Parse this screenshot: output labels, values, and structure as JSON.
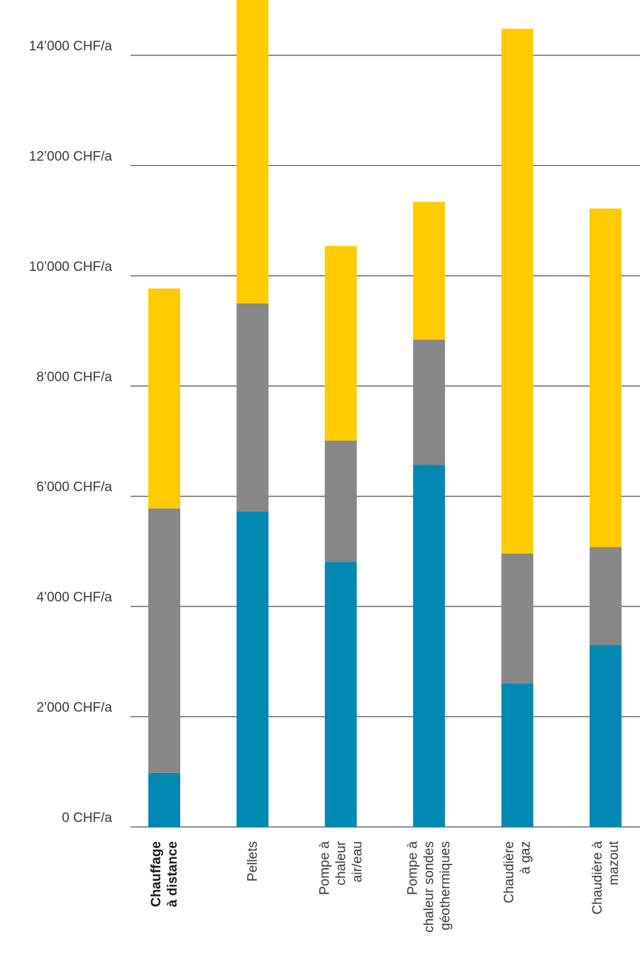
{
  "chart_data": {
    "type": "bar",
    "stacked": true,
    "title": "",
    "xlabel": "",
    "ylabel": "",
    "ylim": [
      0,
      14800
    ],
    "grid": true,
    "legend": "none",
    "yticks": [
      {
        "value": 0,
        "label": "0 CHF/a"
      },
      {
        "value": 2000,
        "label": "2’000 CHF/a"
      },
      {
        "value": 4000,
        "label": "4’000 CHF/a"
      },
      {
        "value": 6000,
        "label": "6’000 CHF/a"
      },
      {
        "value": 8000,
        "label": "8’000 CHF/a"
      },
      {
        "value": 10000,
        "label": "10’000 CHF/a"
      },
      {
        "value": 12000,
        "label": "12’000 CHF/a"
      },
      {
        "value": 14000,
        "label": "14’000 CHF/a"
      }
    ],
    "categories": [
      {
        "lines": [
          "Chauffage",
          "à distance"
        ],
        "bold": true
      },
      {
        "lines": [
          "Pellets"
        ],
        "bold": false
      },
      {
        "lines": [
          "Pompe à",
          "chaleur",
          "air/eau"
        ],
        "bold": false
      },
      {
        "lines": [
          "Pompe à",
          "chaleur sondes",
          "géothermiques"
        ],
        "bold": false
      },
      {
        "lines": [
          "Chaudière",
          "à gaz"
        ],
        "bold": false
      },
      {
        "lines": [
          "Chaudière à",
          "mazout"
        ],
        "bold": false
      }
    ],
    "series": [
      {
        "color": "#0088b3",
        "values": [
          980,
          5720,
          4810,
          6570,
          2600,
          3300
        ]
      },
      {
        "color": "#878787",
        "values": [
          4800,
          3780,
          2200,
          2270,
          2360,
          1780
        ]
      },
      {
        "color": "#fecb00",
        "values": [
          3990,
          6280,
          3530,
          2500,
          9520,
          6140
        ]
      }
    ]
  }
}
